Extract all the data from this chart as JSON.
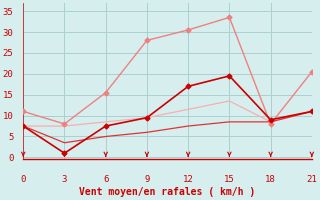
{
  "series": [
    {
      "x": [
        0,
        3,
        6,
        9,
        12,
        15,
        18,
        21
      ],
      "y": [
        11,
        8,
        15.5,
        28,
        30.5,
        33.5,
        8,
        20.5
      ],
      "color": "#f08080",
      "lw": 1.0,
      "marker": "D",
      "ms": 2.5,
      "zorder": 3
    },
    {
      "x": [
        0,
        3,
        6,
        9,
        12,
        15,
        18,
        21
      ],
      "y": [
        7.5,
        7.5,
        8.5,
        9.5,
        11.5,
        13.5,
        8.5,
        11
      ],
      "color": "#f4b0b0",
      "lw": 0.9,
      "marker": null,
      "ms": 0,
      "zorder": 2
    },
    {
      "x": [
        0,
        3,
        6,
        9,
        12,
        15,
        18,
        21
      ],
      "y": [
        7.5,
        1,
        7.5,
        9.5,
        17,
        19.5,
        9,
        11
      ],
      "color": "#cc0000",
      "lw": 1.2,
      "marker": "D",
      "ms": 2.5,
      "zorder": 4
    },
    {
      "x": [
        0,
        3,
        6,
        9,
        12,
        15,
        18,
        21
      ],
      "y": [
        7.5,
        3.5,
        5,
        6,
        7.5,
        8.5,
        8.5,
        11
      ],
      "color": "#dd3333",
      "lw": 0.9,
      "marker": null,
      "ms": 0,
      "zorder": 2
    }
  ],
  "xlabel": "Vent moyen/en rafales ( km/h )",
  "xlim": [
    0,
    21
  ],
  "ylim": [
    -0.5,
    37
  ],
  "xticks": [
    0,
    3,
    6,
    9,
    12,
    15,
    18,
    21
  ],
  "yticks": [
    0,
    5,
    10,
    15,
    20,
    25,
    30,
    35
  ],
  "bg_color": "#d6eeee",
  "grid_color": "#aad0d0",
  "label_color": "#cc0000",
  "tick_color": "#cc0000",
  "spine_color": "#cc0000"
}
